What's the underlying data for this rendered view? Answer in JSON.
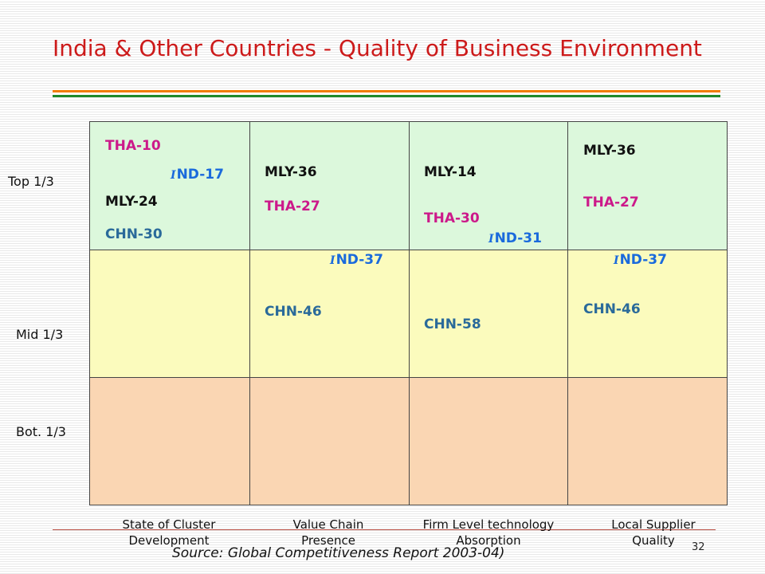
{
  "slide": {
    "title": "India & Other Countries - Quality of Business Environment",
    "source": "Source: Global Competitiveness Report 2003-04)",
    "page_number": "32"
  },
  "rows": {
    "top": "Top 1/3",
    "mid": "Mid 1/3",
    "bot": "Bot. 1/3"
  },
  "columns": [
    {
      "line1": "State of Cluster",
      "line2": "Development"
    },
    {
      "line1": "Value Chain",
      "line2": "Presence"
    },
    {
      "line1": "Firm Level technology",
      "line2": "Absorption"
    },
    {
      "line1": "Local Supplier",
      "line2": "Quality"
    }
  ],
  "rankings": {
    "col1": {
      "tha": "THA-10",
      "ind": "ND-17",
      "mly": "MLY-24",
      "chn": "CHN-30"
    },
    "col2": {
      "mly": "MLY-36",
      "tha": "THA-27",
      "ind": "ND-37",
      "chn": "CHN-46"
    },
    "col3": {
      "mly": "MLY-14",
      "tha": "THA-30",
      "ind": "ND-31",
      "chn": "CHN-58"
    },
    "col4": {
      "mly": "MLY-36",
      "tha": "THA-27",
      "ind": "ND-37",
      "chn": "CHN-46"
    }
  },
  "ind_prefix": "I",
  "colors": {
    "title": "#cc1a1a",
    "tha": "#cc1a8a",
    "ind": "#1a6adc",
    "chn": "#2a6a9a",
    "mly": "#111111",
    "top_band": "#dcf8dc",
    "mid_band": "#fbfbbd",
    "bottom_band": "#fad6b3"
  }
}
